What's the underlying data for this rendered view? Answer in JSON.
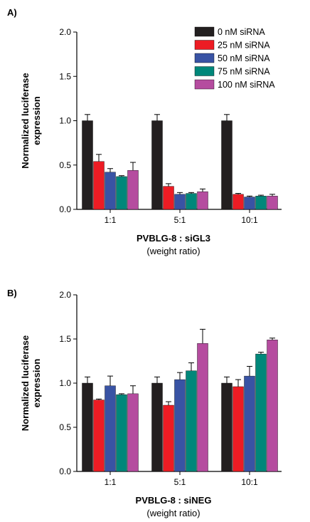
{
  "colors": {
    "axis": "#000000",
    "series": [
      "#231f20",
      "#ed1c24",
      "#3953a4",
      "#00877a",
      "#b54c9f"
    ]
  },
  "chart_data": [
    {
      "panel_label": "A)",
      "type": "bar",
      "ylabel_line1": "Normalized luciferase",
      "ylabel_line2": "expression",
      "xlabel": "PVBLG-8 : siGL3",
      "xlabel_sub": "(weight ratio)",
      "categories": [
        "1:1",
        "5:1",
        "10:1"
      ],
      "ylim": [
        0,
        2.0
      ],
      "yticks": [
        "0.0",
        "0.5",
        "1.0",
        "1.5",
        "2.0"
      ],
      "legend_position": "top-right",
      "grid": false,
      "series": [
        {
          "name": "0 nM siRNA",
          "values": [
            1.0,
            1.0,
            1.0
          ],
          "errors": [
            0.07,
            0.07,
            0.07
          ]
        },
        {
          "name": "25 nM siRNA",
          "values": [
            0.54,
            0.26,
            0.17
          ],
          "errors": [
            0.08,
            0.03,
            0.01
          ]
        },
        {
          "name": "50 nM siRNA",
          "values": [
            0.42,
            0.17,
            0.14
          ],
          "errors": [
            0.04,
            0.02,
            0.01
          ]
        },
        {
          "name": "75 nM siRNA",
          "values": [
            0.37,
            0.18,
            0.15
          ],
          "errors": [
            0.01,
            0.01,
            0.01
          ]
        },
        {
          "name": "100 nM siRNA",
          "values": [
            0.44,
            0.2,
            0.15
          ],
          "errors": [
            0.09,
            0.03,
            0.02
          ]
        }
      ]
    },
    {
      "panel_label": "B)",
      "type": "bar",
      "ylabel_line1": "Normalized luciferase",
      "ylabel_line2": "expression",
      "xlabel": "PVBLG-8 : siNEG",
      "xlabel_sub": "(weight ratio)",
      "categories": [
        "1:1",
        "5:1",
        "10:1"
      ],
      "ylim": [
        0,
        2.0
      ],
      "yticks": [
        "0.0",
        "0.5",
        "1.0",
        "1.5",
        "2.0"
      ],
      "grid": false,
      "series": [
        {
          "values": [
            1.0,
            1.0,
            1.0
          ],
          "errors": [
            0.07,
            0.07,
            0.07
          ]
        },
        {
          "values": [
            0.81,
            0.75,
            0.96
          ],
          "errors": [
            0.01,
            0.04,
            0.08
          ]
        },
        {
          "values": [
            0.97,
            1.04,
            1.08
          ],
          "errors": [
            0.11,
            0.08,
            0.11
          ]
        },
        {
          "values": [
            0.87,
            1.14,
            1.33
          ],
          "errors": [
            0.01,
            0.09,
            0.02
          ]
        },
        {
          "values": [
            0.88,
            1.45,
            1.49
          ],
          "errors": [
            0.09,
            0.16,
            0.02
          ]
        }
      ]
    }
  ]
}
